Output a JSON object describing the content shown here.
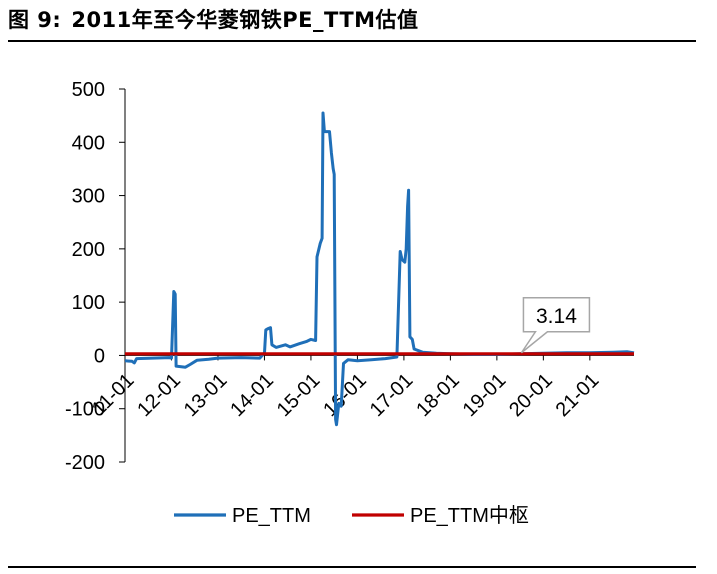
{
  "figure": {
    "label": "图  9:",
    "title": "2011年至今华菱钢铁PE_TTM估值"
  },
  "chart_data": {
    "type": "line",
    "title": "2011年至今华菱钢铁PE_TTM估值",
    "xlabel": "",
    "ylabel": "",
    "ylim": [
      -200,
      500
    ],
    "yticks": [
      500,
      400,
      300,
      200,
      100,
      0,
      -100,
      -200
    ],
    "x_range": [
      2011.0,
      2021.95
    ],
    "x_ticks": [
      {
        "label": "11-01",
        "x": 2011.0
      },
      {
        "label": "12-01",
        "x": 2012.0
      },
      {
        "label": "13-01",
        "x": 2013.0
      },
      {
        "label": "14-01",
        "x": 2014.0
      },
      {
        "label": "15-01",
        "x": 2015.0
      },
      {
        "label": "16-01",
        "x": 2016.0
      },
      {
        "label": "17-01",
        "x": 2017.0
      },
      {
        "label": "18-01",
        "x": 2018.0
      },
      {
        "label": "19-01",
        "x": 2019.0
      },
      {
        "label": "20-01",
        "x": 2020.0
      },
      {
        "label": "21-01",
        "x": 2021.0
      }
    ],
    "series": [
      {
        "name": "PE_TTM",
        "color": "#1f6fb8",
        "points": [
          [
            2011.0,
            -10
          ],
          [
            2011.15,
            -11
          ],
          [
            2011.2,
            -14
          ],
          [
            2011.25,
            -6
          ],
          [
            2011.6,
            -5
          ],
          [
            2011.95,
            -4
          ],
          [
            2012.0,
            -5
          ],
          [
            2012.05,
            120
          ],
          [
            2012.08,
            115
          ],
          [
            2012.1,
            -20
          ],
          [
            2012.3,
            -22
          ],
          [
            2012.4,
            -17
          ],
          [
            2012.55,
            -9
          ],
          [
            2012.8,
            -7
          ],
          [
            2013.0,
            -5
          ],
          [
            2013.5,
            -4
          ],
          [
            2013.9,
            -5
          ],
          [
            2014.0,
            5
          ],
          [
            2014.03,
            48
          ],
          [
            2014.07,
            50
          ],
          [
            2014.13,
            52
          ],
          [
            2014.16,
            20
          ],
          [
            2014.25,
            15
          ],
          [
            2014.45,
            20
          ],
          [
            2014.55,
            16
          ],
          [
            2014.75,
            22
          ],
          [
            2014.9,
            26
          ],
          [
            2015.0,
            30
          ],
          [
            2015.1,
            28
          ],
          [
            2015.13,
            185
          ],
          [
            2015.2,
            210
          ],
          [
            2015.24,
            220
          ],
          [
            2015.26,
            455
          ],
          [
            2015.29,
            420
          ],
          [
            2015.4,
            420
          ],
          [
            2015.44,
            380
          ],
          [
            2015.48,
            350
          ],
          [
            2015.5,
            340
          ],
          [
            2015.53,
            -120
          ],
          [
            2015.55,
            -130
          ],
          [
            2015.6,
            -90
          ],
          [
            2015.65,
            -95
          ],
          [
            2015.7,
            -15
          ],
          [
            2015.8,
            -8
          ],
          [
            2016.0,
            -10
          ],
          [
            2016.3,
            -8
          ],
          [
            2016.6,
            -6
          ],
          [
            2016.85,
            -3
          ],
          [
            2016.92,
            195
          ],
          [
            2016.96,
            180
          ],
          [
            2017.02,
            175
          ],
          [
            2017.05,
            200
          ],
          [
            2017.08,
            280
          ],
          [
            2017.1,
            310
          ],
          [
            2017.13,
            35
          ],
          [
            2017.18,
            30
          ],
          [
            2017.22,
            12
          ],
          [
            2017.4,
            6
          ],
          [
            2017.7,
            4
          ],
          [
            2018.0,
            3
          ],
          [
            2018.5,
            2
          ],
          [
            2019.0,
            2
          ],
          [
            2019.5,
            3
          ],
          [
            2020.0,
            4
          ],
          [
            2020.5,
            5
          ],
          [
            2021.0,
            5
          ],
          [
            2021.5,
            6
          ],
          [
            2021.8,
            7
          ],
          [
            2021.95,
            5
          ]
        ]
      },
      {
        "name": "PE_TTM中枢",
        "color": "#c00000",
        "points": [
          [
            2011.0,
            3.14
          ],
          [
            2021.95,
            3.14
          ]
        ]
      }
    ],
    "annotations": [
      {
        "text": "3.14",
        "x": 2019.55,
        "y": 3.14
      }
    ],
    "legend": {
      "placement": "bottom",
      "entries": [
        "PE_TTM",
        "PE_TTM中枢"
      ]
    }
  }
}
